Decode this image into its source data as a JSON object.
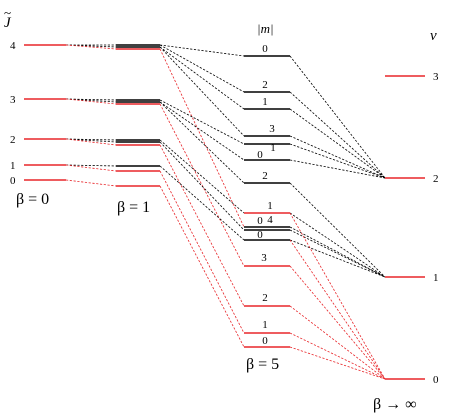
{
  "headers": {
    "j_label": "J",
    "j_tilde": "~",
    "m_label": "|m|",
    "v_label": "v"
  },
  "beta_labels": {
    "b0": "β = 0",
    "b1": "β = 1",
    "b5": "β = 5",
    "binf": "β → ∞"
  },
  "colors": {
    "red": "#e8262a",
    "black": "#000000"
  },
  "columns": {
    "beta0": {
      "levels": [
        {
          "id": "J4",
          "label": "4",
          "color": "red"
        },
        {
          "id": "J3",
          "label": "3",
          "color": "red"
        },
        {
          "id": "J2",
          "label": "2",
          "color": "red"
        },
        {
          "id": "J1",
          "label": "1",
          "color": "red"
        },
        {
          "id": "J0",
          "label": "0",
          "color": "red"
        }
      ]
    },
    "beta5": {
      "levels": [
        {
          "id": "m0_top",
          "label": "0",
          "color": "black"
        },
        {
          "id": "m2_a",
          "label": "2",
          "color": "black"
        },
        {
          "id": "m1_a",
          "label": "1",
          "color": "black"
        },
        {
          "id": "m3_a",
          "label": "3",
          "color": "black"
        },
        {
          "id": "m1_b",
          "label": "1",
          "color": "black"
        },
        {
          "id": "m0_b",
          "label": "0",
          "color": "black"
        },
        {
          "id": "m2_b",
          "label": "2",
          "color": "black"
        },
        {
          "id": "m1_c",
          "label": "1",
          "color": "red"
        },
        {
          "id": "m4_a",
          "label": "4",
          "color": "black"
        },
        {
          "id": "m0_c",
          "label": "0",
          "color": "black"
        },
        {
          "id": "m0_d",
          "label": "0",
          "color": "black"
        },
        {
          "id": "m3_b",
          "label": "3",
          "color": "red"
        },
        {
          "id": "m2_c",
          "label": "2",
          "color": "red"
        },
        {
          "id": "m1_d",
          "label": "1",
          "color": "red"
        },
        {
          "id": "m0_e",
          "label": "0",
          "color": "red"
        }
      ]
    },
    "binf": {
      "levels": [
        {
          "id": "v3",
          "label": "3",
          "color": "red"
        },
        {
          "id": "v2",
          "label": "2",
          "color": "red"
        },
        {
          "id": "v1",
          "label": "1",
          "color": "red"
        },
        {
          "id": "v0",
          "label": "0",
          "color": "red"
        }
      ]
    }
  }
}
